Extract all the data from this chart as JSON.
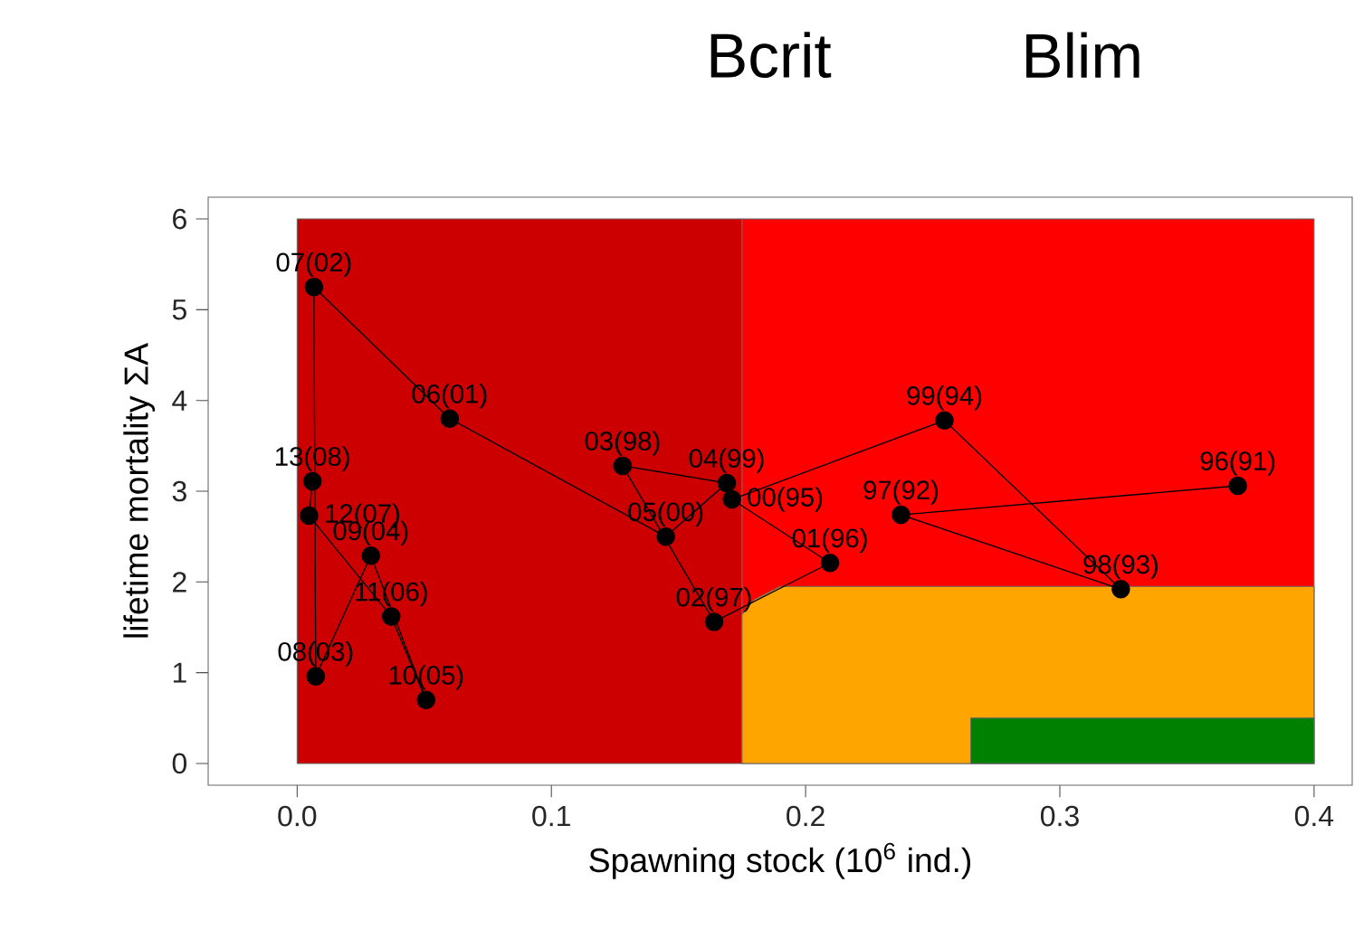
{
  "chart_data": {
    "type": "line",
    "xlabel": "Spawning stock (10$^{6}$ ind.)",
    "ylabel": "lifetime mortality ΣA",
    "xlim": [
      -0.035,
      0.415
    ],
    "ylim": [
      -0.24,
      6.24
    ],
    "xticks": [
      {
        "value": 0,
        "label": "0.0"
      },
      0.1,
      0.2,
      0.3,
      0.4
    ],
    "yticks": [
      0,
      1,
      2,
      3,
      4,
      5,
      6
    ],
    "line_style": "solid",
    "series": [
      {
        "type": "area",
        "color": "#cc0000",
        "x": [
          0,
          0.175
        ],
        "values": [
          6,
          6
        ]
      },
      {
        "type": "area",
        "color": "#ff0000",
        "x": [
          0.175,
          0.4
        ],
        "values": [
          6,
          6
        ]
      },
      {
        "type": "area",
        "color": "#ffa500",
        "x": [
          0.175,
          0.1795,
          0.19,
          0.4
        ],
        "values": [
          1.64,
          1.8,
          1.95,
          1.95
        ]
      },
      {
        "type": "area",
        "color": "#008000",
        "x": [
          0.265,
          0.4
        ],
        "values": [
          0.5,
          0.5
        ]
      },
      {
        "color": "#000000",
        "marker": "circle",
        "x": [
          0.37,
          0.2375,
          0.324,
          0.2546,
          0.171,
          0.2096,
          0.164,
          0.128,
          0.169,
          0.145,
          0.06,
          0.0066,
          0.0073,
          0.029,
          0.0507,
          0.037,
          0.0047,
          0.006
        ],
        "values": [
          3.06,
          2.74,
          1.92,
          3.78,
          2.91,
          2.21,
          1.56,
          3.28,
          3.09,
          2.5,
          3.8,
          5.25,
          0.96,
          2.29,
          0.7,
          1.62,
          2.73,
          3.11
        ]
      }
    ],
    "annotations": [
      "Bcrit",
      "Blim",
      {
        "text": "96(91)",
        "x": 0.37,
        "y": 3.06
      },
      {
        "text": "97(92)",
        "x": 0.2375,
        "y": 2.74
      },
      {
        "text": "98(93)",
        "x": 0.324,
        "y": 1.92
      },
      {
        "text": "99(94)",
        "x": 0.2546,
        "y": 3.78
      },
      {
        "text": "00(95)",
        "x": 0.171,
        "y": 2.91
      },
      {
        "text": "01(96)",
        "x": 0.2096,
        "y": 2.21
      },
      {
        "text": "02(97)",
        "x": 0.164,
        "y": 1.56
      },
      {
        "text": "03(98)",
        "x": 0.128,
        "y": 3.28
      },
      {
        "text": "04(99)",
        "x": 0.169,
        "y": 3.09
      },
      {
        "text": "05(00)",
        "x": 0.145,
        "y": 2.5
      },
      {
        "text": "06(01)",
        "x": 0.06,
        "y": 3.8
      },
      {
        "text": "07(02)",
        "x": 0.0066,
        "y": 5.25
      },
      {
        "text": "08(03)",
        "x": 0.0073,
        "y": 0.96
      },
      {
        "text": "09(04)",
        "x": 0.029,
        "y": 2.29
      },
      {
        "text": "10(05)",
        "x": 0.0507,
        "y": 0.7
      },
      {
        "text": "11(06)",
        "x": 0.037,
        "y": 1.62
      },
      {
        "text": "12(07)",
        "x": 0.0047,
        "y": 2.73
      },
      {
        "text": "13(08)",
        "x": 0.006,
        "y": 3.11
      }
    ]
  }
}
